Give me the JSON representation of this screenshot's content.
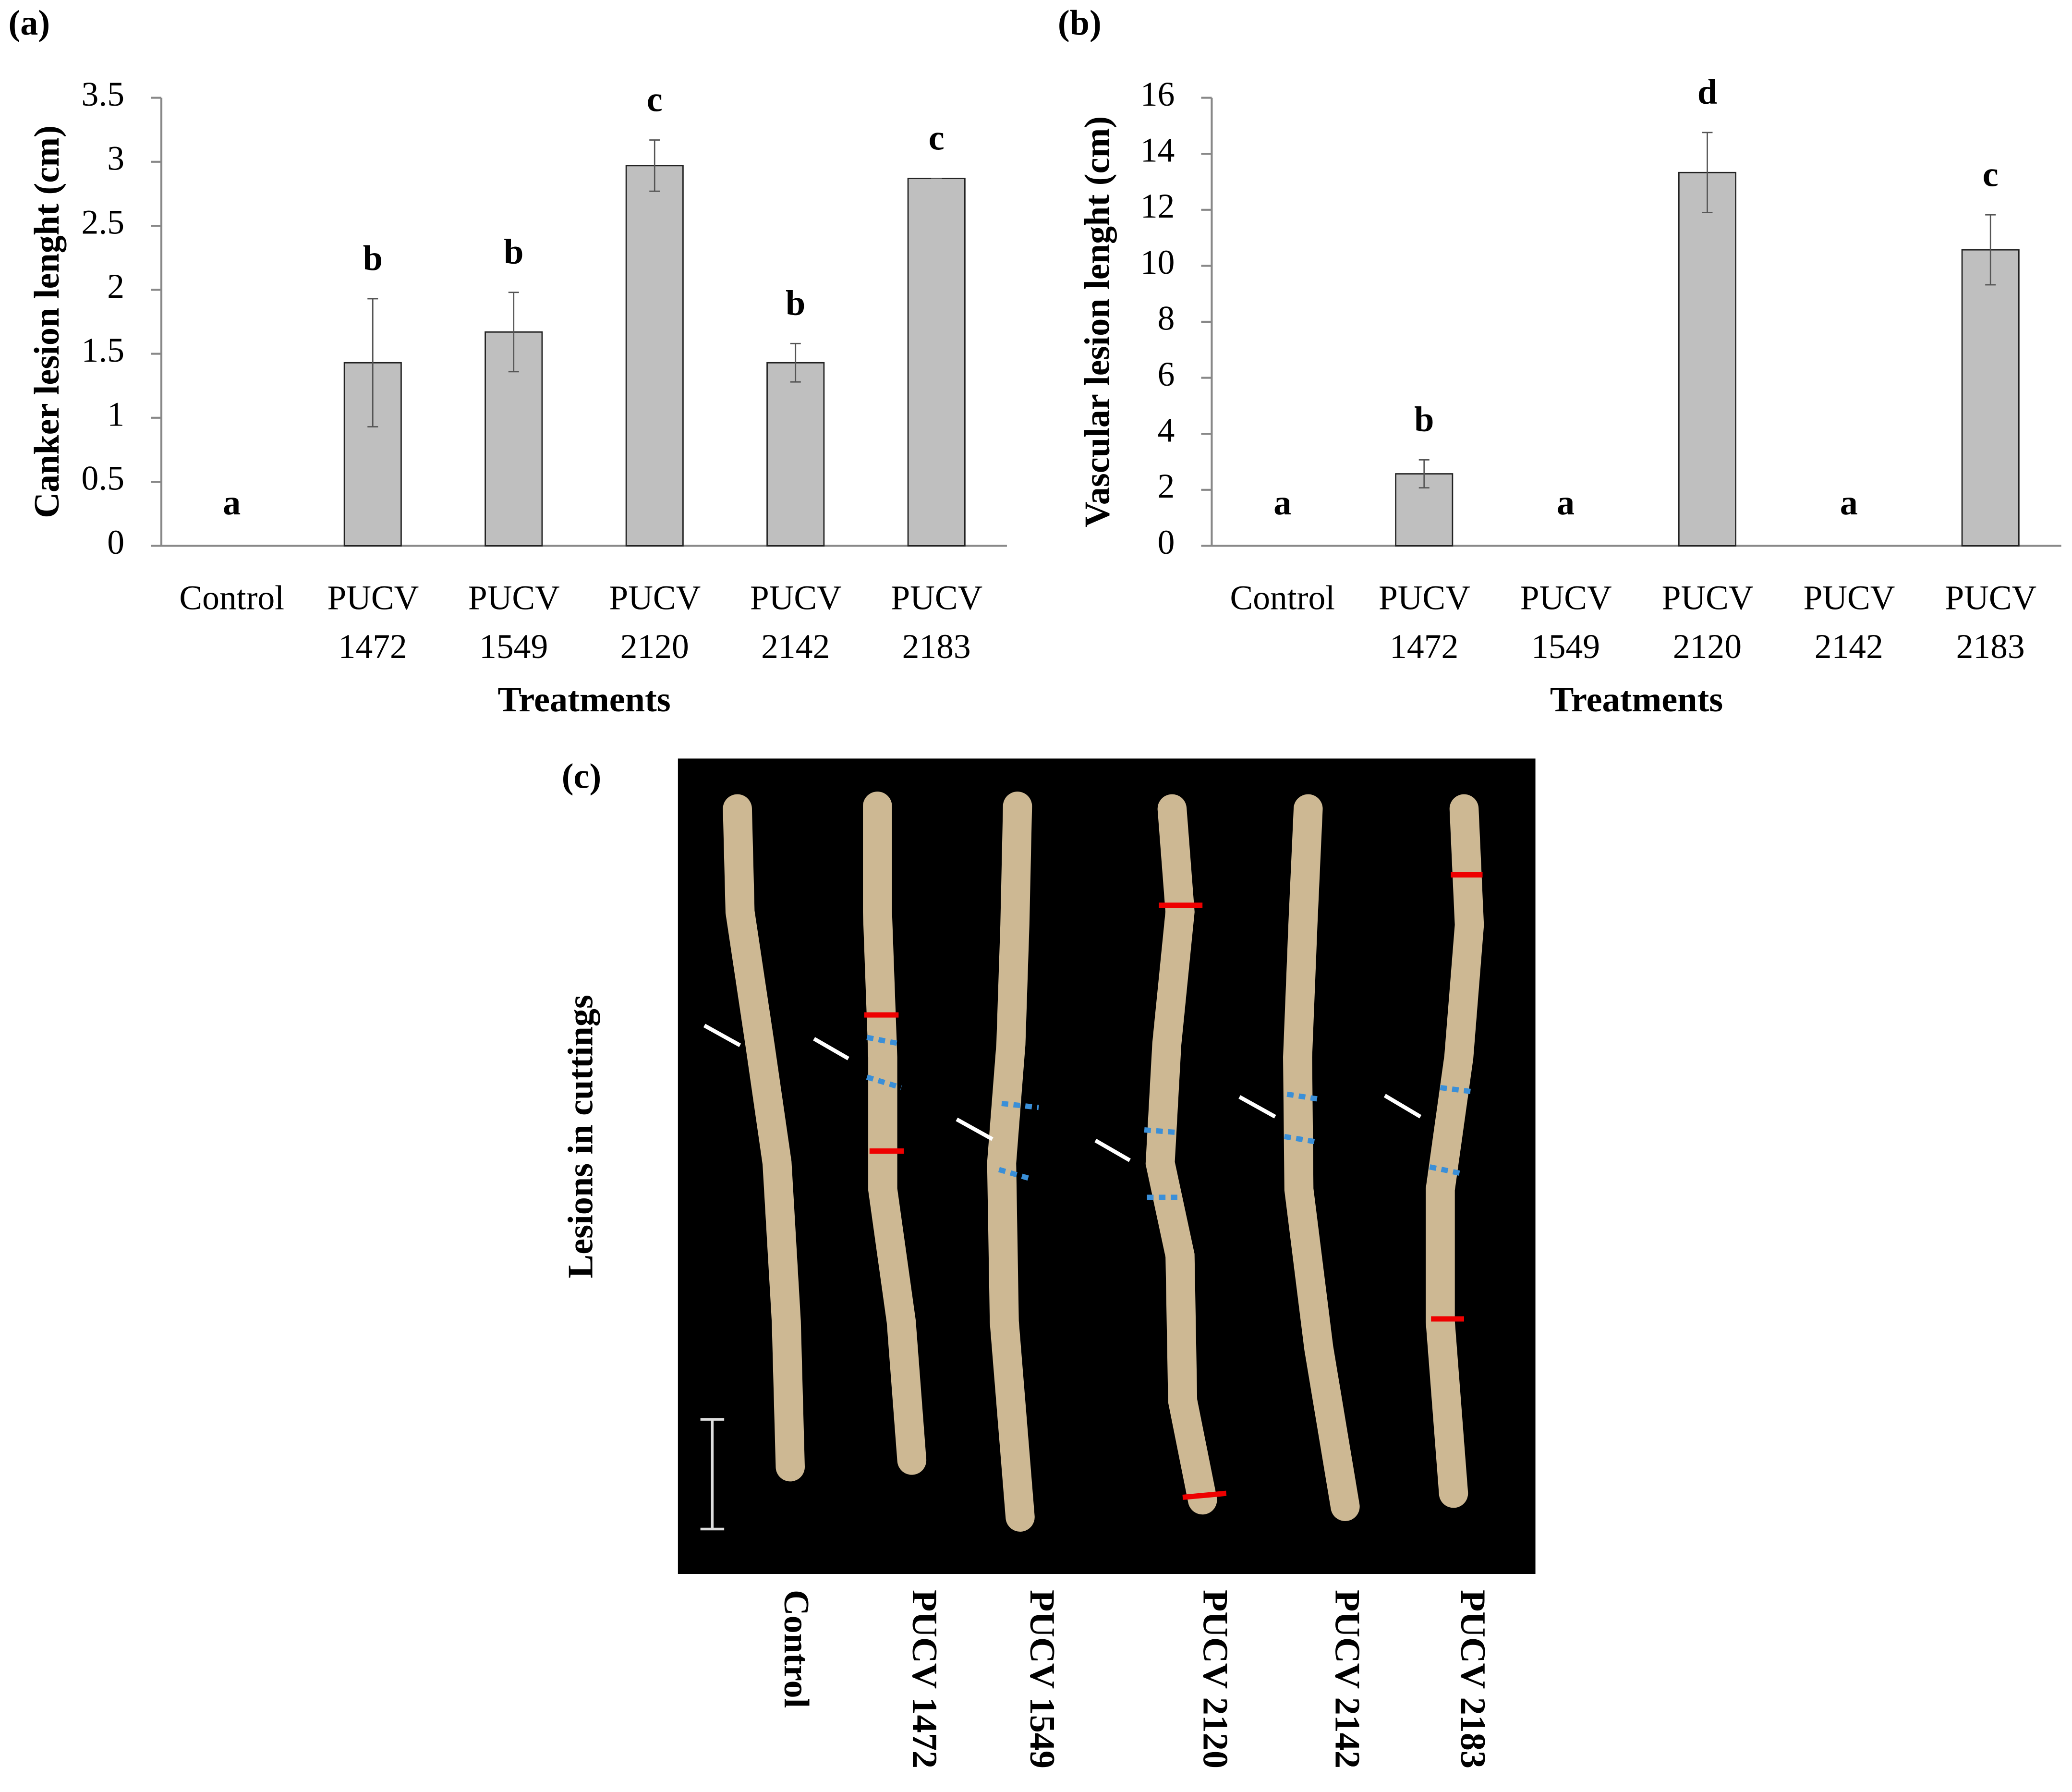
{
  "chart_data": [
    {
      "type": "bar",
      "label": "(a)",
      "y_label": "Canker lesion lenght (cm)",
      "x_label": "Treatments",
      "categories": [
        "Control",
        "PUCV 1472",
        "PUCV 1549",
        "PUCV 2120",
        "PUCV 2142",
        "PUCV 2183"
      ],
      "values": [
        0,
        1.43,
        1.67,
        2.97,
        1.43,
        2.87
      ],
      "errors": [
        0,
        0.5,
        0.31,
        0.2,
        0.15,
        0
      ],
      "significance_letters": [
        "a",
        "b",
        "b",
        "c",
        "b",
        "c"
      ],
      "color": "#bfbfbf",
      "ylim": [
        0,
        3.5
      ],
      "yticks": [
        0,
        0.5,
        1,
        1.5,
        2,
        2.5,
        3,
        3.5
      ]
    },
    {
      "type": "bar",
      "label": "(b)",
      "y_label": "Vascular lesion lenght (cm)",
      "x_label": "Treatments",
      "categories": [
        "Control",
        "PUCV 1472",
        "PUCV 1549",
        "PUCV 2120",
        "PUCV 2142",
        "PUCV 2183"
      ],
      "values": [
        0,
        2.57,
        0,
        13.33,
        0,
        10.57
      ],
      "errors": [
        0,
        0.5,
        0,
        1.43,
        0,
        1.25
      ],
      "significance_letters": [
        "a",
        "b",
        "a",
        "d",
        "a",
        "c"
      ],
      "color": "#bfbfbf",
      "ylim": [
        0,
        16
      ],
      "yticks": [
        0,
        2,
        4,
        6,
        8,
        10,
        12,
        14,
        16
      ]
    }
  ],
  "figure_c": {
    "label": "(c)",
    "y_label": "Lesions in cuttings",
    "cuttings": [
      "Control",
      "PUCV 1472",
      "PUCV 1549",
      "PUCV 2120",
      "PUCV 2142",
      "PUCV 2183"
    ]
  }
}
